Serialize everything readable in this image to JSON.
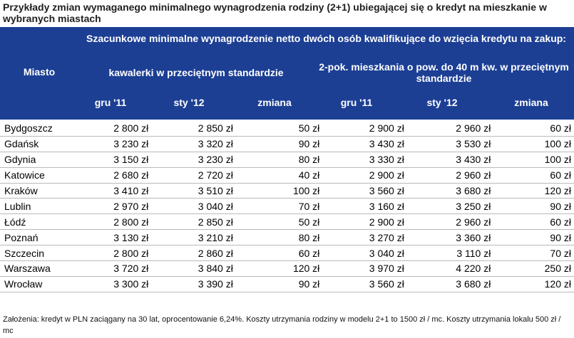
{
  "title": "Przykłady zmian wymaganego minimalnego wynagrodzenia rodziny (2+1) ubiegającej się o kredyt na mieszkanie w wybranych miastach",
  "header": {
    "city_col": "Miasto",
    "group_label": "Szacunkowe minimalne wynagrodzenie netto dwóch osób kwalifikujące do wzięcia kredytu na zakup:",
    "sub1": "kawalerki w przeciętnym standardzie",
    "sub2": "2-pok. mieszkania o pow. do 40 m kw. w przeciętnym standardzie",
    "cols": [
      "gru '11",
      "sty '12",
      "zmiana",
      "gru '11",
      "sty '12",
      "zmiana"
    ]
  },
  "rows": [
    {
      "city": "Bydgoszcz",
      "v": [
        "2 800 zł",
        "2 850 zł",
        "50 zł",
        "2 900 zł",
        "2 960 zł",
        "60 zł"
      ]
    },
    {
      "city": "Gdańsk",
      "v": [
        "3 230 zł",
        "3 320 zł",
        "90 zł",
        "3 430 zł",
        "3 530 zł",
        "100 zł"
      ]
    },
    {
      "city": "Gdynia",
      "v": [
        "3 150 zł",
        "3 230 zł",
        "80 zł",
        "3 330 zł",
        "3 430 zł",
        "100 zł"
      ]
    },
    {
      "city": "Katowice",
      "v": [
        "2 680 zł",
        "2 720 zł",
        "40 zł",
        "2 900 zł",
        "2 960 zł",
        "60 zł"
      ]
    },
    {
      "city": "Kraków",
      "v": [
        "3 410 zł",
        "3 510 zł",
        "100 zł",
        "3 560 zł",
        "3 680 zł",
        "120 zł"
      ]
    },
    {
      "city": "Lublin",
      "v": [
        "2 970 zł",
        "3 040 zł",
        "70 zł",
        "3 160 zł",
        "3 250 zł",
        "90 zł"
      ]
    },
    {
      "city": "Łódź",
      "v": [
        "2 800 zł",
        "2 850 zł",
        "50 zł",
        "2 900 zł",
        "2 960 zł",
        "60 zł"
      ]
    },
    {
      "city": "Poznań",
      "v": [
        "3 130 zł",
        "3 210 zł",
        "80 zł",
        "3 270 zł",
        "3 360 zł",
        "90 zł"
      ]
    },
    {
      "city": "Szczecin",
      "v": [
        "2 800 zł",
        "2 860 zł",
        "60 zł",
        "3 040 zł",
        "3 110 zł",
        "70 zł"
      ]
    },
    {
      "city": "Warszawa",
      "v": [
        "3 720 zł",
        "3 840 zł",
        "120 zł",
        "3 970 zł",
        "4 220 zł",
        "250 zł"
      ]
    },
    {
      "city": "Wrocław",
      "v": [
        "3 300 zł",
        "3 390 zł",
        "90 zł",
        "3 560 zł",
        "3 680 zł",
        "120 zł"
      ]
    }
  ],
  "footnote": "Założenia: kredyt w PLN zaciągany na 30 lat, oprocentowanie 6,24%. Koszty utrzymania rodziny w modelu 2+1 to 1500 zł / mc. Koszty utrzymania lokalu 500 zł / mc",
  "colors": {
    "header_bg": "#1c3f94",
    "header_text": "#ffffff",
    "row_border": "#b9b9b9"
  }
}
